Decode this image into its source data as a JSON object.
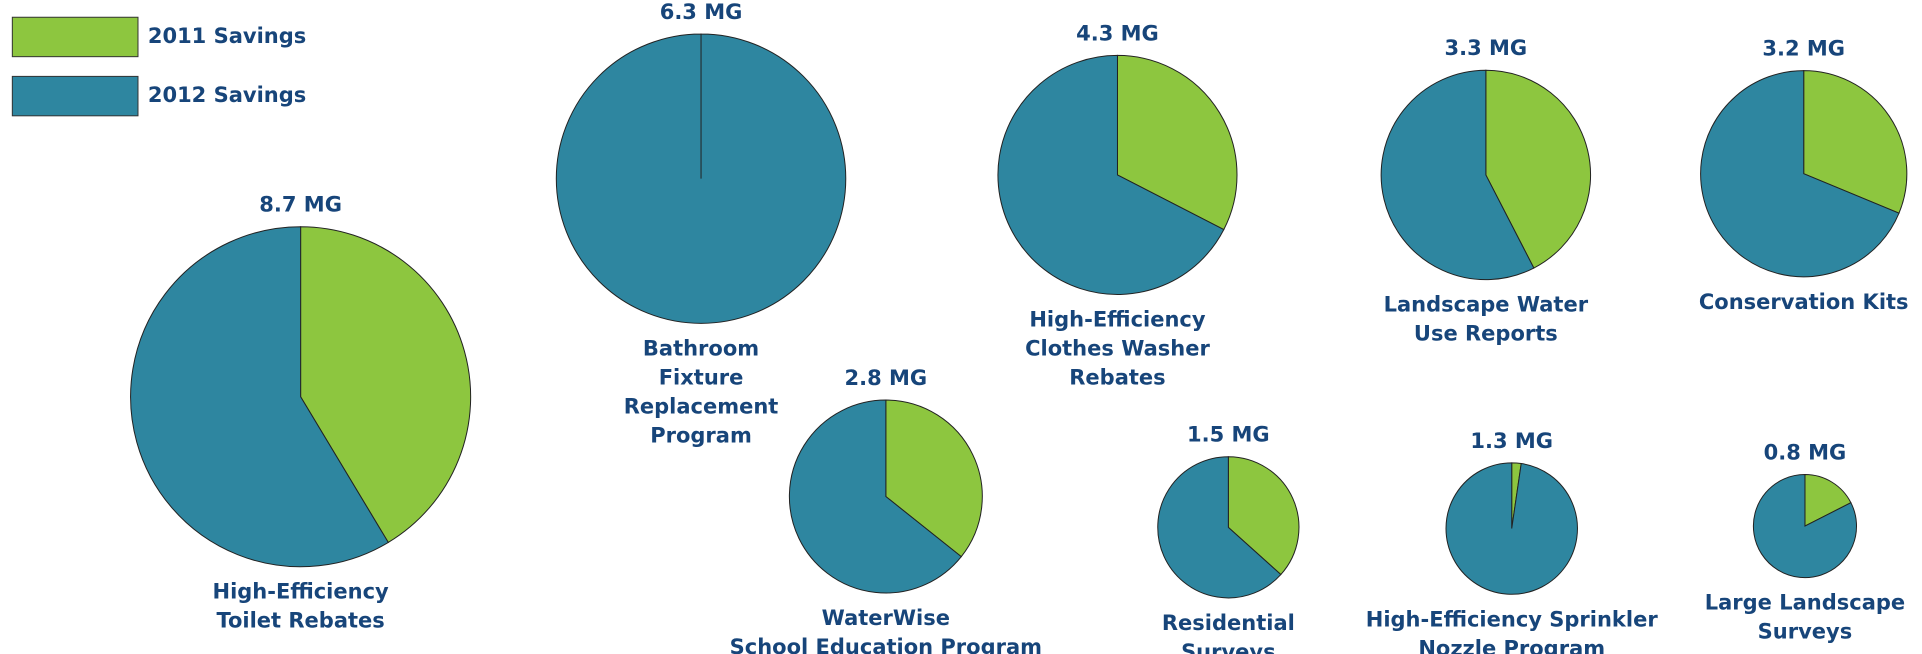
{
  "legend": [
    {
      "name": "2011 Savings",
      "color": "#8dc63f"
    },
    {
      "name": "2012 Savings",
      "color": "#2e86a0"
    }
  ],
  "chart_data": [
    {
      "type": "pie",
      "title": [
        "High-Efficiency",
        "Toilet Rebates"
      ],
      "total": {
        "value": 8.7,
        "label": "8.7 MG"
      },
      "values": [
        3.6,
        5.1
      ]
    },
    {
      "type": "pie",
      "title": [
        "Bathroom",
        "Fixture",
        "Replacement",
        "Program"
      ],
      "total": {
        "value": 6.3,
        "label": "6.3 MG"
      },
      "values": [
        0,
        6.3
      ]
    },
    {
      "type": "pie",
      "title": [
        "High-Efficiency",
        "Clothes Washer",
        "Rebates"
      ],
      "total": {
        "value": 4.3,
        "label": "4.3 MG"
      },
      "values": [
        1.4,
        2.9
      ]
    },
    {
      "type": "pie",
      "title": [
        "Landscape Water",
        "Use Reports"
      ],
      "total": {
        "value": 3.3,
        "label": "3.3 MG"
      },
      "values": [
        1.4,
        1.9
      ]
    },
    {
      "type": "pie",
      "title": [
        "Conservation Kits"
      ],
      "total": {
        "value": 3.2,
        "label": "3.2 MG"
      },
      "values": [
        1.0,
        2.2
      ]
    },
    {
      "type": "pie",
      "title": [
        "WaterWise",
        "School Education Program"
      ],
      "total": {
        "value": 2.8,
        "label": "2.8 MG"
      },
      "values": [
        1.0,
        1.8
      ]
    },
    {
      "type": "pie",
      "title": [
        "Residential",
        "Surveys"
      ],
      "total": {
        "value": 1.5,
        "label": "1.5 MG"
      },
      "values": [
        0.55,
        0.95
      ]
    },
    {
      "type": "pie",
      "title": [
        "High-Efficiency Sprinkler",
        "Nozzle Program"
      ],
      "total": {
        "value": 1.3,
        "label": "1.3 MG"
      },
      "values": [
        0.03,
        1.27
      ]
    },
    {
      "type": "pie",
      "title": [
        "Large Landscape",
        "Surveys"
      ],
      "total": {
        "value": 0.8,
        "label": "0.8 MG"
      },
      "values": [
        0.14,
        0.66
      ]
    }
  ]
}
